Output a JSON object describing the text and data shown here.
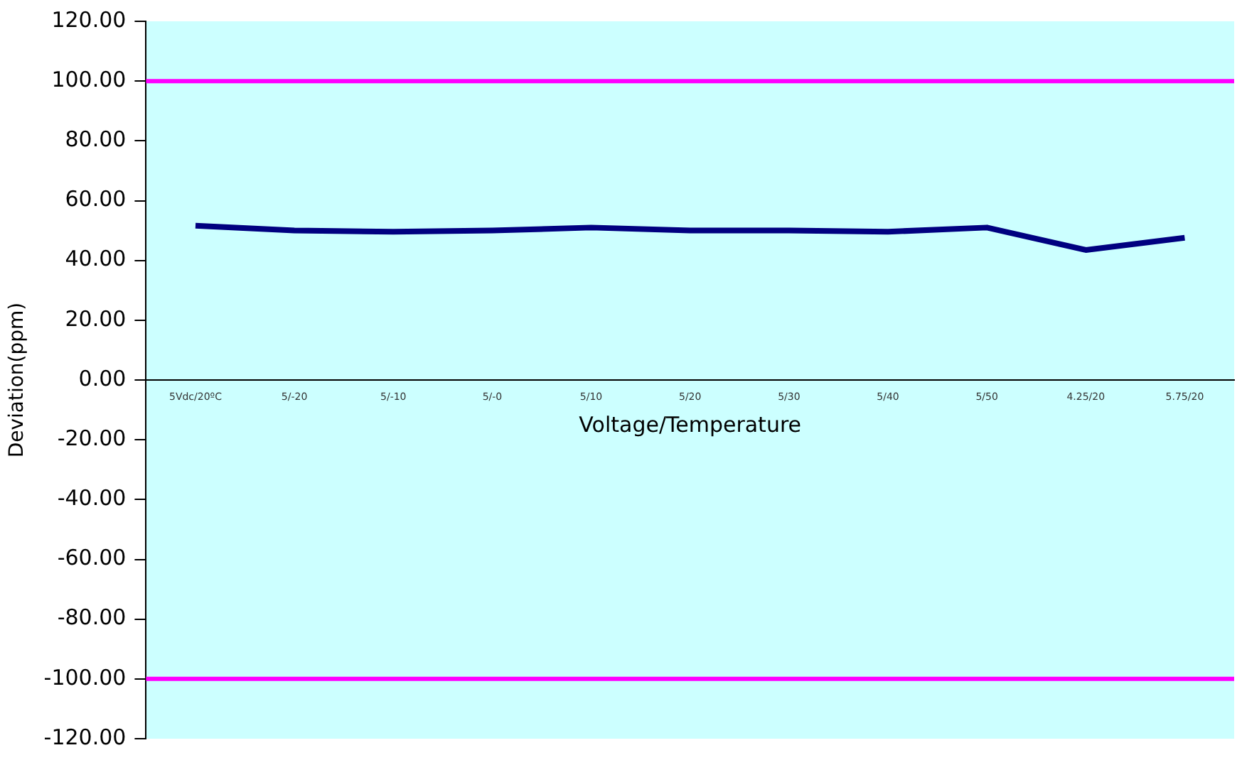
{
  "chart_data": {
    "type": "line",
    "xlabel": "Voltage/Temperature",
    "ylabel": "Deviation(ppm)",
    "categories": [
      "5Vdc/20ºC",
      "5/-20",
      "5/-10",
      "5/-0",
      "5/10",
      "5/20",
      "5/30",
      "5/40",
      "5/50",
      "4.25/20",
      "5.75/20"
    ],
    "series": [
      {
        "color": "#000080",
        "values": [
          51.6,
          50,
          49.6,
          50,
          51,
          50,
          50,
          49.6,
          51,
          43.5,
          47.6
        ]
      }
    ],
    "ylim": [
      -120,
      120
    ],
    "yticks": [
      {
        "value": -120,
        "label": "-120.00"
      },
      {
        "value": -100,
        "label": "-100.00"
      },
      {
        "value": -80,
        "label": "-80.00"
      },
      {
        "value": -60,
        "label": "-60.00"
      },
      {
        "value": -40,
        "label": "-40.00"
      },
      {
        "value": -20,
        "label": "-20.00"
      },
      {
        "value": 0,
        "label": "0.00"
      },
      {
        "value": 20,
        "label": "20.00"
      },
      {
        "value": 40,
        "label": "40.00"
      },
      {
        "value": 60,
        "label": "60.00"
      },
      {
        "value": 80,
        "label": "80.00"
      },
      {
        "value": 100,
        "label": "100.00"
      },
      {
        "value": 120,
        "label": "120.00"
      }
    ],
    "ref_lines": [
      {
        "axis": "y",
        "value": 100,
        "color": "#ff00ff"
      },
      {
        "axis": "y",
        "value": -100,
        "color": "#ff00ff"
      }
    ],
    "grid": false,
    "legend": false
  }
}
